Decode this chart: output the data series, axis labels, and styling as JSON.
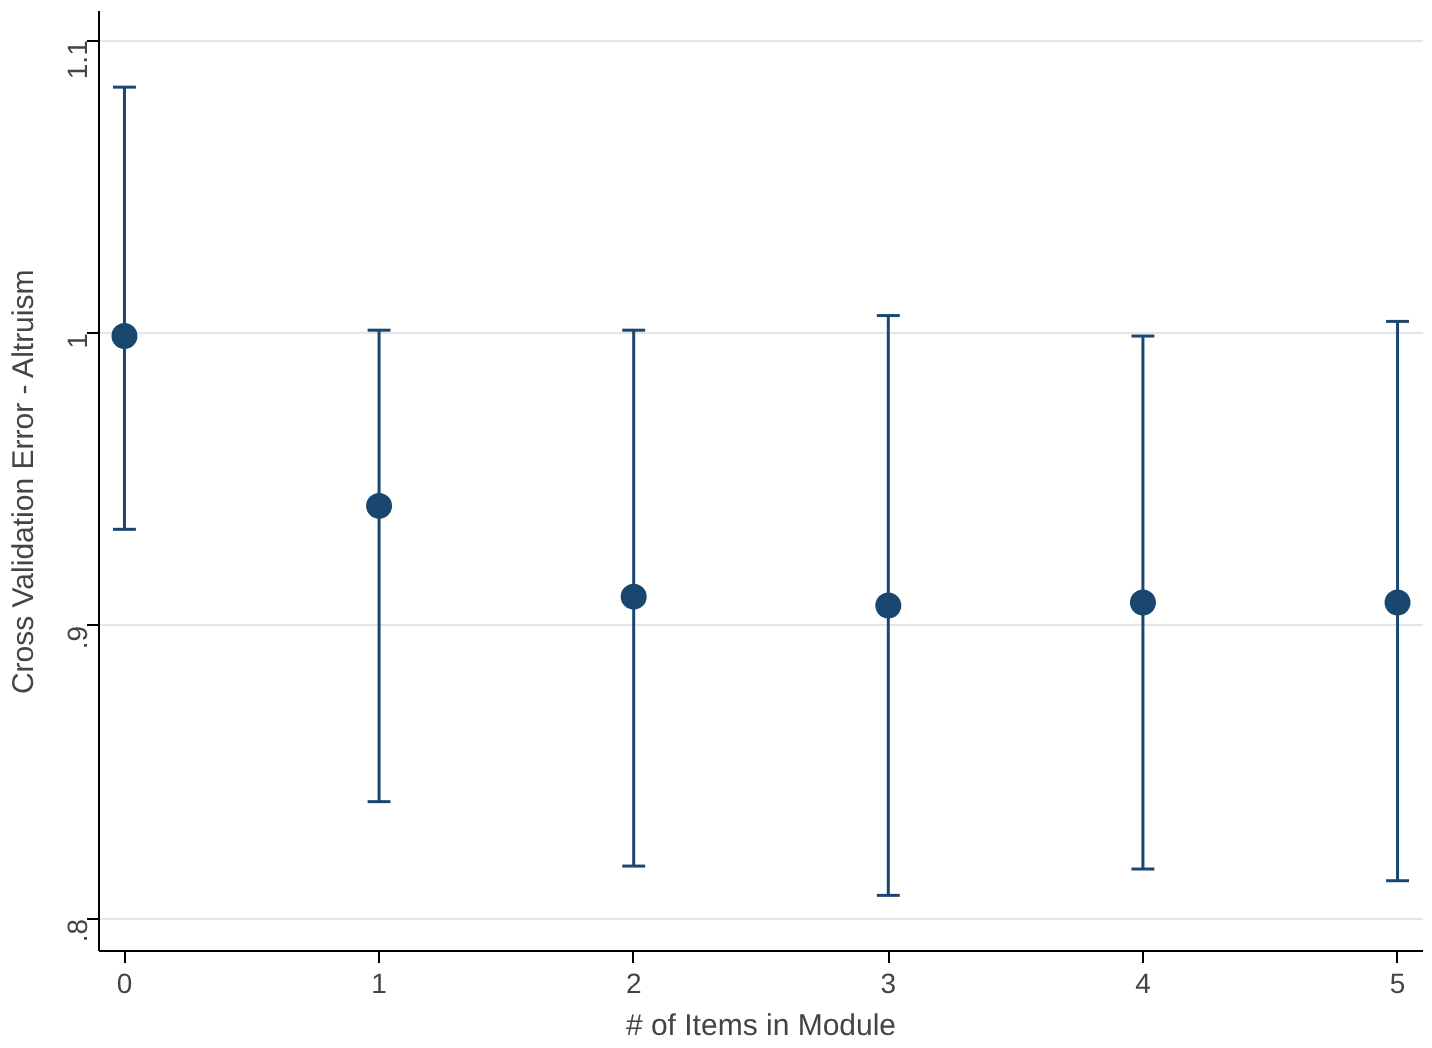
{
  "chart_data": {
    "type": "scatter",
    "xlabel": "# of Items in Module",
    "ylabel": "Cross Validation Error - Altruism",
    "x": [
      0,
      1,
      2,
      3,
      4,
      5
    ],
    "values": [
      0.999,
      0.941,
      0.91,
      0.907,
      0.908,
      0.908
    ],
    "errors": [
      [
        0.933,
        1.084
      ],
      [
        0.84,
        1.001
      ],
      [
        0.818,
        1.001
      ],
      [
        0.808,
        1.006
      ],
      [
        0.817,
        0.999
      ],
      [
        0.813,
        1.004
      ]
    ],
    "color": "#1a476f",
    "marker": "circle",
    "grid": "y",
    "xlim": [
      -0.1,
      5.1
    ],
    "xticks": [
      0,
      1,
      2,
      3,
      4,
      5
    ],
    "ylim": [
      0.789,
      1.11
    ],
    "yticks": [
      {
        "value": 0.8,
        "label": ".8"
      },
      {
        "value": 0.9,
        "label": ".9"
      },
      {
        "value": 1.0,
        "label": "1"
      },
      {
        "value": 1.1,
        "label": "1.1"
      }
    ]
  }
}
